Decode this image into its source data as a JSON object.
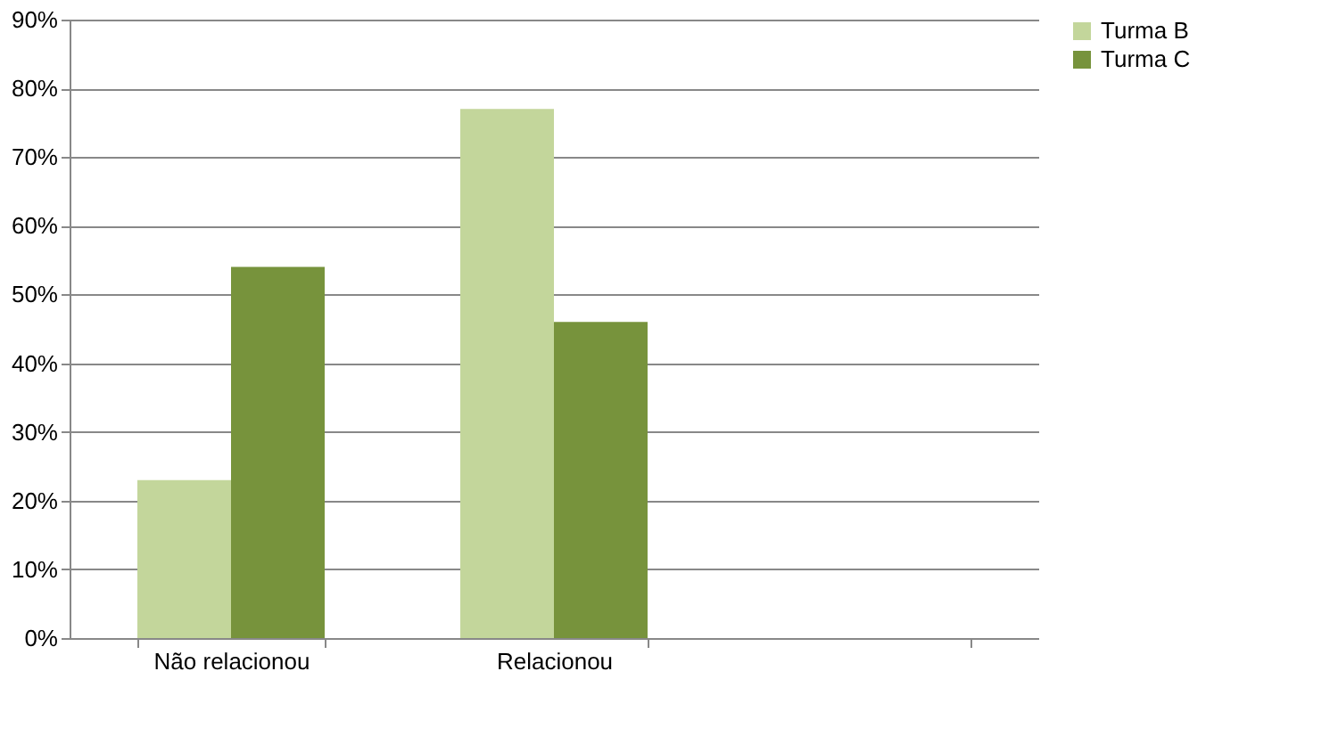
{
  "chart_data": {
    "type": "bar",
    "categories": [
      "Não relacionou",
      "Relacionou",
      null
    ],
    "series": [
      {
        "name": "Turma B",
        "color": "#c3d69b",
        "values": [
          23,
          77,
          null
        ]
      },
      {
        "name": "Turma C",
        "color": "#77933c",
        "values": [
          54,
          46,
          null
        ]
      }
    ],
    "ylim": [
      0,
      90
    ],
    "yticks": [
      {
        "value": 0,
        "label": "0%"
      },
      {
        "value": 10,
        "label": "10%"
      },
      {
        "value": 20,
        "label": "20%"
      },
      {
        "value": 30,
        "label": "30%"
      },
      {
        "value": 40,
        "label": "40%"
      },
      {
        "value": 50,
        "label": "50%"
      },
      {
        "value": 60,
        "label": "60%"
      },
      {
        "value": 70,
        "label": "70%"
      },
      {
        "value": 80,
        "label": "80%"
      },
      {
        "value": 90,
        "label": "90%"
      }
    ],
    "grid": "y",
    "legend": "right"
  }
}
